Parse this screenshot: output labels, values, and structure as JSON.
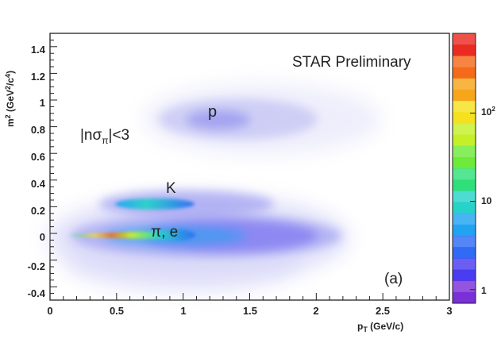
{
  "chart_data": {
    "type": "heatmap",
    "title": "STAR Preliminary",
    "xlabel": "p_T (GeV/c)",
    "ylabel": "m^2 (GeV^2/c^4)",
    "xlim": [
      0,
      3
    ],
    "ylim": [
      -0.5,
      1.5
    ],
    "x_ticks": [
      "0",
      "0.5",
      "1",
      "1.5",
      "2",
      "2.5",
      "3"
    ],
    "x_tick_values": [
      0,
      0.5,
      1,
      1.5,
      2,
      2.5,
      3
    ],
    "y_ticks": [
      "-0.4",
      "-0.2",
      "0",
      "0.2",
      "0.4",
      "0.6",
      "0.8",
      "1",
      "1.2",
      "1.4"
    ],
    "y_tick_values": [
      -0.4,
      -0.2,
      0,
      0.2,
      0.4,
      0.6,
      0.8,
      1,
      1.2,
      1.4
    ],
    "colorbar": {
      "scale": "log",
      "range": [
        0.7,
        800
      ],
      "labels": [
        "1",
        "10",
        "10^2"
      ],
      "label_values": [
        1,
        10,
        100
      ]
    },
    "clusters": [
      {
        "name": "p",
        "label": "p",
        "pt_range": [
          0.6,
          2.5
        ],
        "m2": 0.88
      },
      {
        "name": "kaon",
        "label": "K",
        "pt_range": [
          0.5,
          2.0
        ],
        "m2": 0.24
      },
      {
        "name": "pion-electron",
        "label": "π, e",
        "pt_range": [
          0.15,
          2.5
        ],
        "m2": 0.02
      }
    ],
    "annotations": {
      "cut": "|nσπ|<3",
      "panel": "(a)"
    }
  },
  "colors": {
    "frame": "#222222",
    "background_cloud": "#a9a9f0",
    "colormap": [
      "#7b2fd6",
      "#4a3cf0",
      "#2f6bf5",
      "#21a3f2",
      "#27d3c8",
      "#2fe07a",
      "#6fea3a",
      "#c5f028",
      "#f5e11f",
      "#f7a51b",
      "#f46a1a",
      "#ea2b22"
    ]
  }
}
